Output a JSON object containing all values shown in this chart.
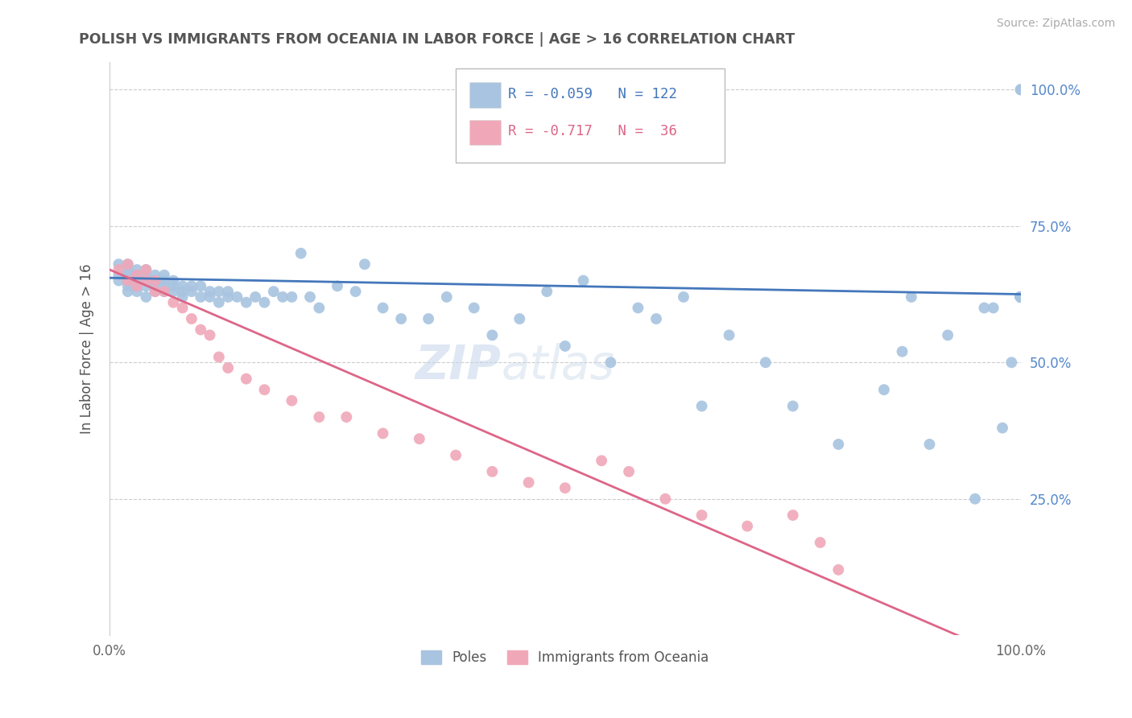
{
  "title": "POLISH VS IMMIGRANTS FROM OCEANIA IN LABOR FORCE | AGE > 16 CORRELATION CHART",
  "source": "Source: ZipAtlas.com",
  "ylabel": "In Labor Force | Age > 16",
  "poles_color": "#a8c4e0",
  "oceania_color": "#f0a8b8",
  "poles_line_color": "#4477bb",
  "oceania_line_color": "#dd6688",
  "watermark_text": "ZIPAtlas",
  "background_color": "#ffffff",
  "grid_color": "#cccccc",
  "title_color": "#555555",
  "poles_R": "-0.059",
  "poles_N": "122",
  "oceania_R": "-0.717",
  "oceania_N": " 36",
  "poles_label": "Poles",
  "oceania_label": "Immigrants from Oceania",
  "poles_scatter_x": [
    0.01,
    0.01,
    0.01,
    0.02,
    0.02,
    0.02,
    0.02,
    0.02,
    0.02,
    0.02,
    0.02,
    0.03,
    0.03,
    0.03,
    0.03,
    0.03,
    0.03,
    0.03,
    0.04,
    0.04,
    0.04,
    0.04,
    0.04,
    0.04,
    0.05,
    0.05,
    0.05,
    0.05,
    0.05,
    0.06,
    0.06,
    0.06,
    0.06,
    0.07,
    0.07,
    0.07,
    0.08,
    0.08,
    0.08,
    0.09,
    0.09,
    0.1,
    0.1,
    0.11,
    0.11,
    0.12,
    0.12,
    0.13,
    0.13,
    0.14,
    0.15,
    0.16,
    0.17,
    0.18,
    0.19,
    0.2,
    0.21,
    0.22,
    0.23,
    0.25,
    0.27,
    0.28,
    0.3,
    0.32,
    0.35,
    0.37,
    0.4,
    0.42,
    0.45,
    0.48,
    0.5,
    0.52,
    0.55,
    0.58,
    0.6,
    0.63,
    0.65,
    0.68,
    0.72,
    0.75,
    0.8,
    0.85,
    0.87,
    0.88,
    0.9,
    0.92,
    0.95,
    0.96,
    0.97,
    0.98,
    0.99,
    1.0,
    1.0,
    1.0,
    1.0,
    1.0,
    1.0,
    1.0,
    1.0,
    1.0,
    1.0,
    1.0,
    1.0,
    1.0,
    1.0,
    1.0,
    1.0,
    1.0,
    1.0,
    1.0,
    1.0,
    1.0,
    1.0,
    1.0,
    1.0,
    1.0,
    1.0,
    1.0,
    1.0,
    1.0,
    1.0,
    1.0
  ],
  "poles_scatter_y": [
    0.66,
    0.68,
    0.65,
    0.66,
    0.64,
    0.67,
    0.65,
    0.63,
    0.68,
    0.66,
    0.65,
    0.64,
    0.66,
    0.65,
    0.63,
    0.67,
    0.65,
    0.64,
    0.65,
    0.67,
    0.64,
    0.62,
    0.65,
    0.66,
    0.63,
    0.65,
    0.64,
    0.66,
    0.65,
    0.63,
    0.65,
    0.64,
    0.66,
    0.64,
    0.63,
    0.65,
    0.62,
    0.64,
    0.63,
    0.63,
    0.64,
    0.62,
    0.64,
    0.63,
    0.62,
    0.61,
    0.63,
    0.62,
    0.63,
    0.62,
    0.61,
    0.62,
    0.61,
    0.63,
    0.62,
    0.62,
    0.7,
    0.62,
    0.6,
    0.64,
    0.63,
    0.68,
    0.6,
    0.58,
    0.58,
    0.62,
    0.6,
    0.55,
    0.58,
    0.63,
    0.53,
    0.65,
    0.5,
    0.6,
    0.58,
    0.62,
    0.42,
    0.55,
    0.5,
    0.42,
    0.35,
    0.45,
    0.52,
    0.62,
    0.35,
    0.55,
    0.25,
    0.6,
    0.6,
    0.38,
    0.5,
    0.62,
    0.62,
    0.62,
    0.62,
    0.62,
    0.62,
    0.62,
    0.62,
    0.62,
    0.62,
    0.62,
    0.62,
    0.62,
    0.62,
    0.62,
    0.62,
    0.62,
    0.62,
    0.62,
    0.62,
    0.62,
    0.62,
    0.62,
    0.62,
    0.62,
    0.62,
    0.62,
    0.62,
    0.62,
    1.0,
    1.0
  ],
  "oceania_scatter_x": [
    0.01,
    0.02,
    0.02,
    0.03,
    0.03,
    0.04,
    0.04,
    0.05,
    0.05,
    0.06,
    0.07,
    0.08,
    0.09,
    0.1,
    0.11,
    0.12,
    0.13,
    0.15,
    0.17,
    0.2,
    0.23,
    0.26,
    0.3,
    0.34,
    0.38,
    0.42,
    0.46,
    0.5,
    0.54,
    0.57,
    0.61,
    0.65,
    0.7,
    0.75,
    0.78,
    0.8
  ],
  "oceania_scatter_y": [
    0.67,
    0.68,
    0.65,
    0.66,
    0.64,
    0.65,
    0.67,
    0.63,
    0.65,
    0.63,
    0.61,
    0.6,
    0.58,
    0.56,
    0.55,
    0.51,
    0.49,
    0.47,
    0.45,
    0.43,
    0.4,
    0.4,
    0.37,
    0.36,
    0.33,
    0.3,
    0.28,
    0.27,
    0.32,
    0.3,
    0.25,
    0.22,
    0.2,
    0.22,
    0.17,
    0.12
  ],
  "xlim": [
    0.0,
    1.0
  ],
  "ylim": [
    0.0,
    1.05
  ]
}
